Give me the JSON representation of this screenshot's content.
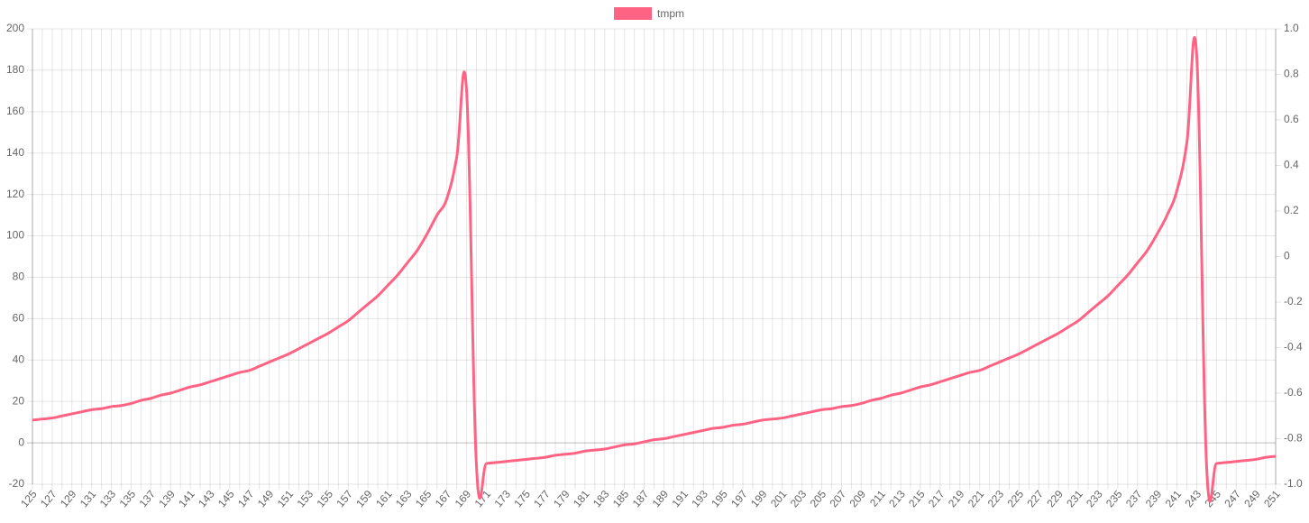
{
  "chart_data": {
    "type": "line",
    "categories": [
      "125",
      null,
      "127",
      null,
      "129",
      null,
      "131",
      null,
      "133",
      null,
      "135",
      null,
      "137",
      null,
      "139",
      null,
      "141",
      null,
      "143",
      null,
      "145",
      null,
      "147",
      null,
      "149",
      null,
      "151",
      null,
      "153",
      null,
      "155",
      null,
      "157",
      null,
      "159",
      null,
      "161",
      null,
      "163",
      null,
      "165",
      null,
      "167",
      null,
      "169",
      null,
      "171",
      null,
      "173",
      null,
      "175",
      null,
      "177",
      null,
      "179",
      null,
      "181",
      null,
      "183",
      null,
      "185",
      null,
      "187",
      null,
      "189",
      null,
      "191",
      null,
      "193",
      null,
      "195",
      null,
      "197",
      null,
      "199",
      null,
      "201",
      null,
      "203",
      null,
      "205",
      null,
      "207",
      null,
      "209",
      null,
      "211",
      null,
      "213",
      null,
      "215",
      null,
      "217",
      null,
      "219",
      null,
      "221",
      null,
      "223",
      null,
      "225",
      null,
      "227",
      null,
      "229",
      null,
      "231",
      null,
      "233",
      null,
      "235",
      null,
      "237",
      null,
      "239",
      null,
      "241",
      null,
      "243",
      null,
      "245",
      null,
      "247",
      null,
      "249",
      null,
      "251"
    ],
    "series": [
      {
        "name": "tmpm",
        "color": "#ff6384",
        "values": [
          11,
          11.5,
          12,
          13,
          14,
          15,
          16,
          16.5,
          17.5,
          18,
          19,
          20.5,
          21.5,
          23,
          24,
          25.5,
          27,
          28,
          29.5,
          31,
          32.5,
          34,
          35,
          37,
          39,
          41,
          43,
          45.5,
          48,
          50.5,
          53,
          56,
          59,
          63,
          67,
          71,
          76,
          81,
          87,
          93,
          101,
          110,
          118,
          138,
          170,
          -11,
          -10,
          -9.5,
          -9,
          -8.5,
          -8,
          -7.5,
          -7,
          -6,
          -5.5,
          -5,
          -4,
          -3.5,
          -3,
          -2,
          -1,
          -0.5,
          0.5,
          1.5,
          2,
          3,
          4,
          5,
          6,
          7,
          7.5,
          8.5,
          9,
          10,
          11,
          11.5,
          12,
          13,
          14,
          15,
          16,
          16.5,
          17.5,
          18,
          19,
          20.5,
          21.5,
          23,
          24,
          25.5,
          27,
          28,
          29.5,
          31,
          32.5,
          34,
          35,
          37,
          39,
          41,
          43,
          45.5,
          48,
          50.5,
          53,
          56,
          59,
          63,
          67,
          71,
          76,
          81,
          87,
          93,
          101,
          110,
          122,
          145,
          187,
          -11,
          -10,
          -9.5,
          -9,
          -8.5,
          -8,
          -7,
          -6.5
        ]
      }
    ],
    "ylim": [
      -20,
      200
    ],
    "yticks": [
      -20,
      0,
      20,
      40,
      60,
      80,
      100,
      120,
      140,
      160,
      180,
      200
    ],
    "y2lim": [
      -1,
      1
    ],
    "y2ticks": [
      {
        "value": -1,
        "label": "-1.0"
      },
      -0.8,
      -0.6,
      -0.4,
      -0.2,
      0,
      0.2,
      0.4,
      0.6,
      0.8,
      {
        "value": 1,
        "label": "1.0"
      }
    ],
    "grid": true,
    "legend": "top"
  }
}
